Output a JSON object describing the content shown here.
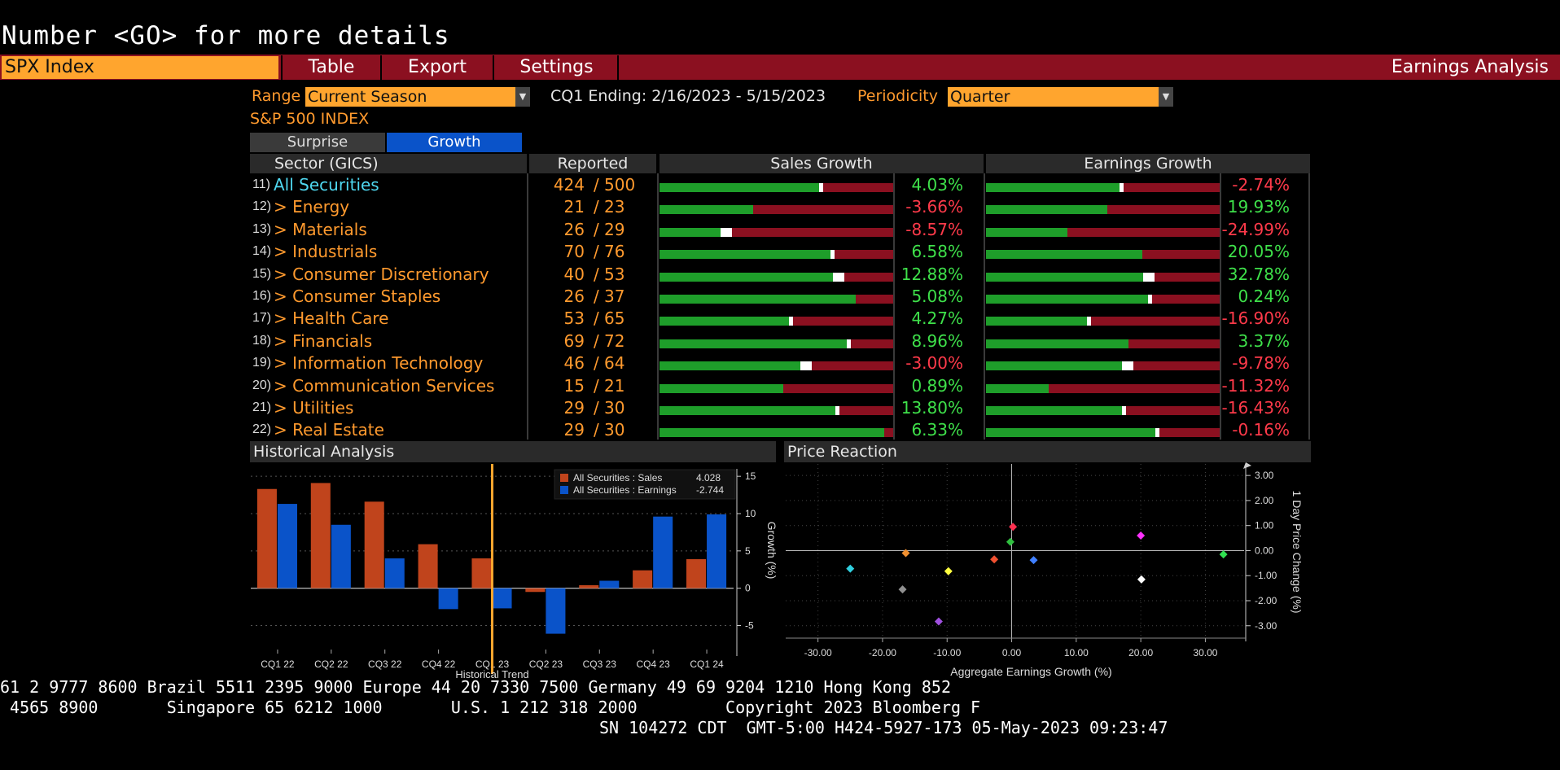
{
  "command_line": "Number <GO> for more details",
  "toolbar": {
    "security": "SPX Index",
    "menu": [
      "Table",
      "Export",
      "Settings"
    ],
    "title": "Earnings Analysis"
  },
  "controls": {
    "range_label": "Range",
    "range_value": "Current Season",
    "ending": "CQ1 Ending: 2/16/2023 - 5/15/2023",
    "periodicity_label": "Periodicity",
    "periodicity_value": "Quarter",
    "index_name": "S&P 500 INDEX",
    "tabs": [
      "Surprise",
      "Growth"
    ]
  },
  "table": {
    "headers": {
      "sector": "Sector (GICS)",
      "reported": "Reported",
      "sales": "Sales Growth",
      "earnings": "Earnings Growth"
    },
    "rows": [
      {
        "num": "11)",
        "name": "All Securities",
        "rep": "424",
        "total": "500",
        "sales": "4.03%",
        "earn": "-2.74%",
        "sales_fill": 0.69,
        "sales_mark": 0.69,
        "earn_fill": 0.58,
        "earn_mark": 0.58
      },
      {
        "num": "12)",
        "name": "> Energy",
        "rep": "21",
        "total": "23",
        "sales": "-3.66%",
        "earn": "19.93%",
        "sales_fill": 0.4,
        "sales_mark": null,
        "earn_fill": 0.52,
        "earn_mark": null
      },
      {
        "num": "13)",
        "name": "> Materials",
        "rep": "26",
        "total": "29",
        "sales": "-8.57%",
        "earn": "-24.99%",
        "sales_fill": 0.27,
        "sales_mark": 0.27,
        "earn_fill": 0.35,
        "earn_mark": null
      },
      {
        "num": "14)",
        "name": "> Industrials",
        "rep": "70",
        "total": "76",
        "sales": "6.58%",
        "earn": "20.05%",
        "sales_fill": 0.74,
        "sales_mark": 0.74,
        "earn_fill": 0.67,
        "earn_mark": null
      },
      {
        "num": "15)",
        "name": "> Consumer Discretionary",
        "rep": "40",
        "total": "53",
        "sales": "12.88%",
        "earn": "32.78%",
        "sales_fill": 0.75,
        "sales_mark": 0.75,
        "earn_fill": 0.68,
        "earn_mark": 0.68
      },
      {
        "num": "16)",
        "name": "> Consumer Staples",
        "rep": "26",
        "total": "37",
        "sales": "5.08%",
        "earn": "0.24%",
        "sales_fill": 0.84,
        "sales_mark": null,
        "earn_fill": 0.7,
        "earn_mark": 0.7
      },
      {
        "num": "17)",
        "name": "> Health Care",
        "rep": "53",
        "total": "65",
        "sales": "4.27%",
        "earn": "-16.90%",
        "sales_fill": 0.56,
        "sales_mark": 0.56,
        "earn_fill": 0.44,
        "earn_mark": 0.44
      },
      {
        "num": "18)",
        "name": "> Financials",
        "rep": "69",
        "total": "72",
        "sales": "8.96%",
        "earn": "3.37%",
        "sales_fill": 0.81,
        "sales_mark": 0.81,
        "earn_fill": 0.61,
        "earn_mark": null
      },
      {
        "num": "19)",
        "name": "> Information Technology",
        "rep": "46",
        "total": "64",
        "sales": "-3.00%",
        "earn": "-9.78%",
        "sales_fill": 0.61,
        "sales_mark": 0.61,
        "earn_fill": 0.59,
        "earn_mark": 0.59
      },
      {
        "num": "20)",
        "name": "> Communication Services",
        "rep": "15",
        "total": "21",
        "sales": "0.89%",
        "earn": "-11.32%",
        "sales_fill": 0.53,
        "sales_mark": null,
        "earn_fill": 0.27,
        "earn_mark": null
      },
      {
        "num": "21)",
        "name": "> Utilities",
        "rep": "29",
        "total": "30",
        "sales": "13.80%",
        "earn": "-16.43%",
        "sales_fill": 0.76,
        "sales_mark": 0.76,
        "earn_fill": 0.59,
        "earn_mark": 0.59
      },
      {
        "num": "22)",
        "name": "> Real Estate",
        "rep": "29",
        "total": "30",
        "sales": "6.33%",
        "earn": "-0.16%",
        "sales_fill": 0.96,
        "sales_mark": null,
        "earn_fill": 0.73,
        "earn_mark": 0.73
      }
    ]
  },
  "historical": {
    "title": "Historical Analysis",
    "legend": [
      {
        "label": "All Securities : Sales",
        "value": "4.028",
        "color": "#c0441c"
      },
      {
        "label": "All Securities : Earnings",
        "value": "-2.744",
        "color": "#0a53c9"
      }
    ]
  },
  "price_reaction": {
    "title": "Price Reaction"
  },
  "chart_data": [
    {
      "type": "bar",
      "categories": [
        "CQ1 22",
        "CQ2 22",
        "CQ3 22",
        "CQ4 22",
        "CQ1 23",
        "CQ2 23",
        "CQ3 23",
        "CQ4 23",
        "CQ1 24"
      ],
      "series": [
        {
          "name": "All Securities : Sales",
          "values": [
            13.3,
            14.1,
            11.6,
            5.9,
            4.0,
            -0.5,
            0.4,
            2.4,
            3.9
          ],
          "color": "#c0441c"
        },
        {
          "name": "All Securities : Earnings",
          "values": [
            11.3,
            8.5,
            4.0,
            -2.8,
            -2.7,
            -6.1,
            1.0,
            9.6,
            9.9
          ],
          "color": "#0a53c9"
        }
      ],
      "xlabel": "Historical Trend",
      "ylabel": "Growth (%)",
      "ylim": [
        -8,
        16
      ],
      "yticks": [
        -5,
        0,
        5,
        10,
        15
      ],
      "current_marker": "CQ1 23",
      "grid": true,
      "legend_position": "top-right"
    },
    {
      "type": "scatter",
      "xlabel": "Aggregate Earnings Growth (%)",
      "ylabel": "1 Day Price Change (%)",
      "xlim": [
        -35,
        36
      ],
      "ylim": [
        -3.3,
        3.2
      ],
      "xticks": [
        -30,
        -20,
        -10,
        0,
        10,
        20,
        30
      ],
      "xtick_labels": [
        "-30.00",
        "-20.00",
        "-10.00",
        "0.00",
        "10.00",
        "20.00",
        "30.00"
      ],
      "yticks": [
        -3,
        -2,
        -1,
        0,
        1,
        2,
        3
      ],
      "ytick_labels": [
        "-3.00",
        "-2.00",
        "-1.00",
        "0.00",
        "1.00",
        "2.00",
        "3.00"
      ],
      "points": [
        {
          "x": 0.2,
          "y": 0.95,
          "color": "#ff3050"
        },
        {
          "x": -0.2,
          "y": 0.35,
          "color": "#30c040"
        },
        {
          "x": 20.0,
          "y": 0.6,
          "color": "#ff30ff"
        },
        {
          "x": 32.8,
          "y": -0.15,
          "color": "#30e050"
        },
        {
          "x": -2.7,
          "y": -0.35,
          "color": "#f05030"
        },
        {
          "x": 3.4,
          "y": -0.38,
          "color": "#4080ff"
        },
        {
          "x": -16.4,
          "y": -0.1,
          "color": "#f09030"
        },
        {
          "x": -25.0,
          "y": -0.72,
          "color": "#30d0e0"
        },
        {
          "x": -9.8,
          "y": -0.82,
          "color": "#ffff40"
        },
        {
          "x": 20.1,
          "y": -1.15,
          "color": "#ffffff"
        },
        {
          "x": -16.9,
          "y": -1.55,
          "color": "#909090"
        },
        {
          "x": -11.3,
          "y": -2.83,
          "color": "#a050e0"
        }
      ],
      "grid": true
    }
  ],
  "ticker": {
    "line1": "61 2 9777 8600 Brazil 5511 2395 9000 Europe 44 20 7330 7500 Germany 49 69 9204 1210 Hong Kong 852",
    "line2": " 4565 8900       Singapore 65 6212 1000       U.S. 1 212 318 2000         Copyright 2023 Bloomberg F",
    "line3": "SN 104272 CDT  GMT-5:00 H424-5927-173 05-May-2023 09:23:47"
  }
}
